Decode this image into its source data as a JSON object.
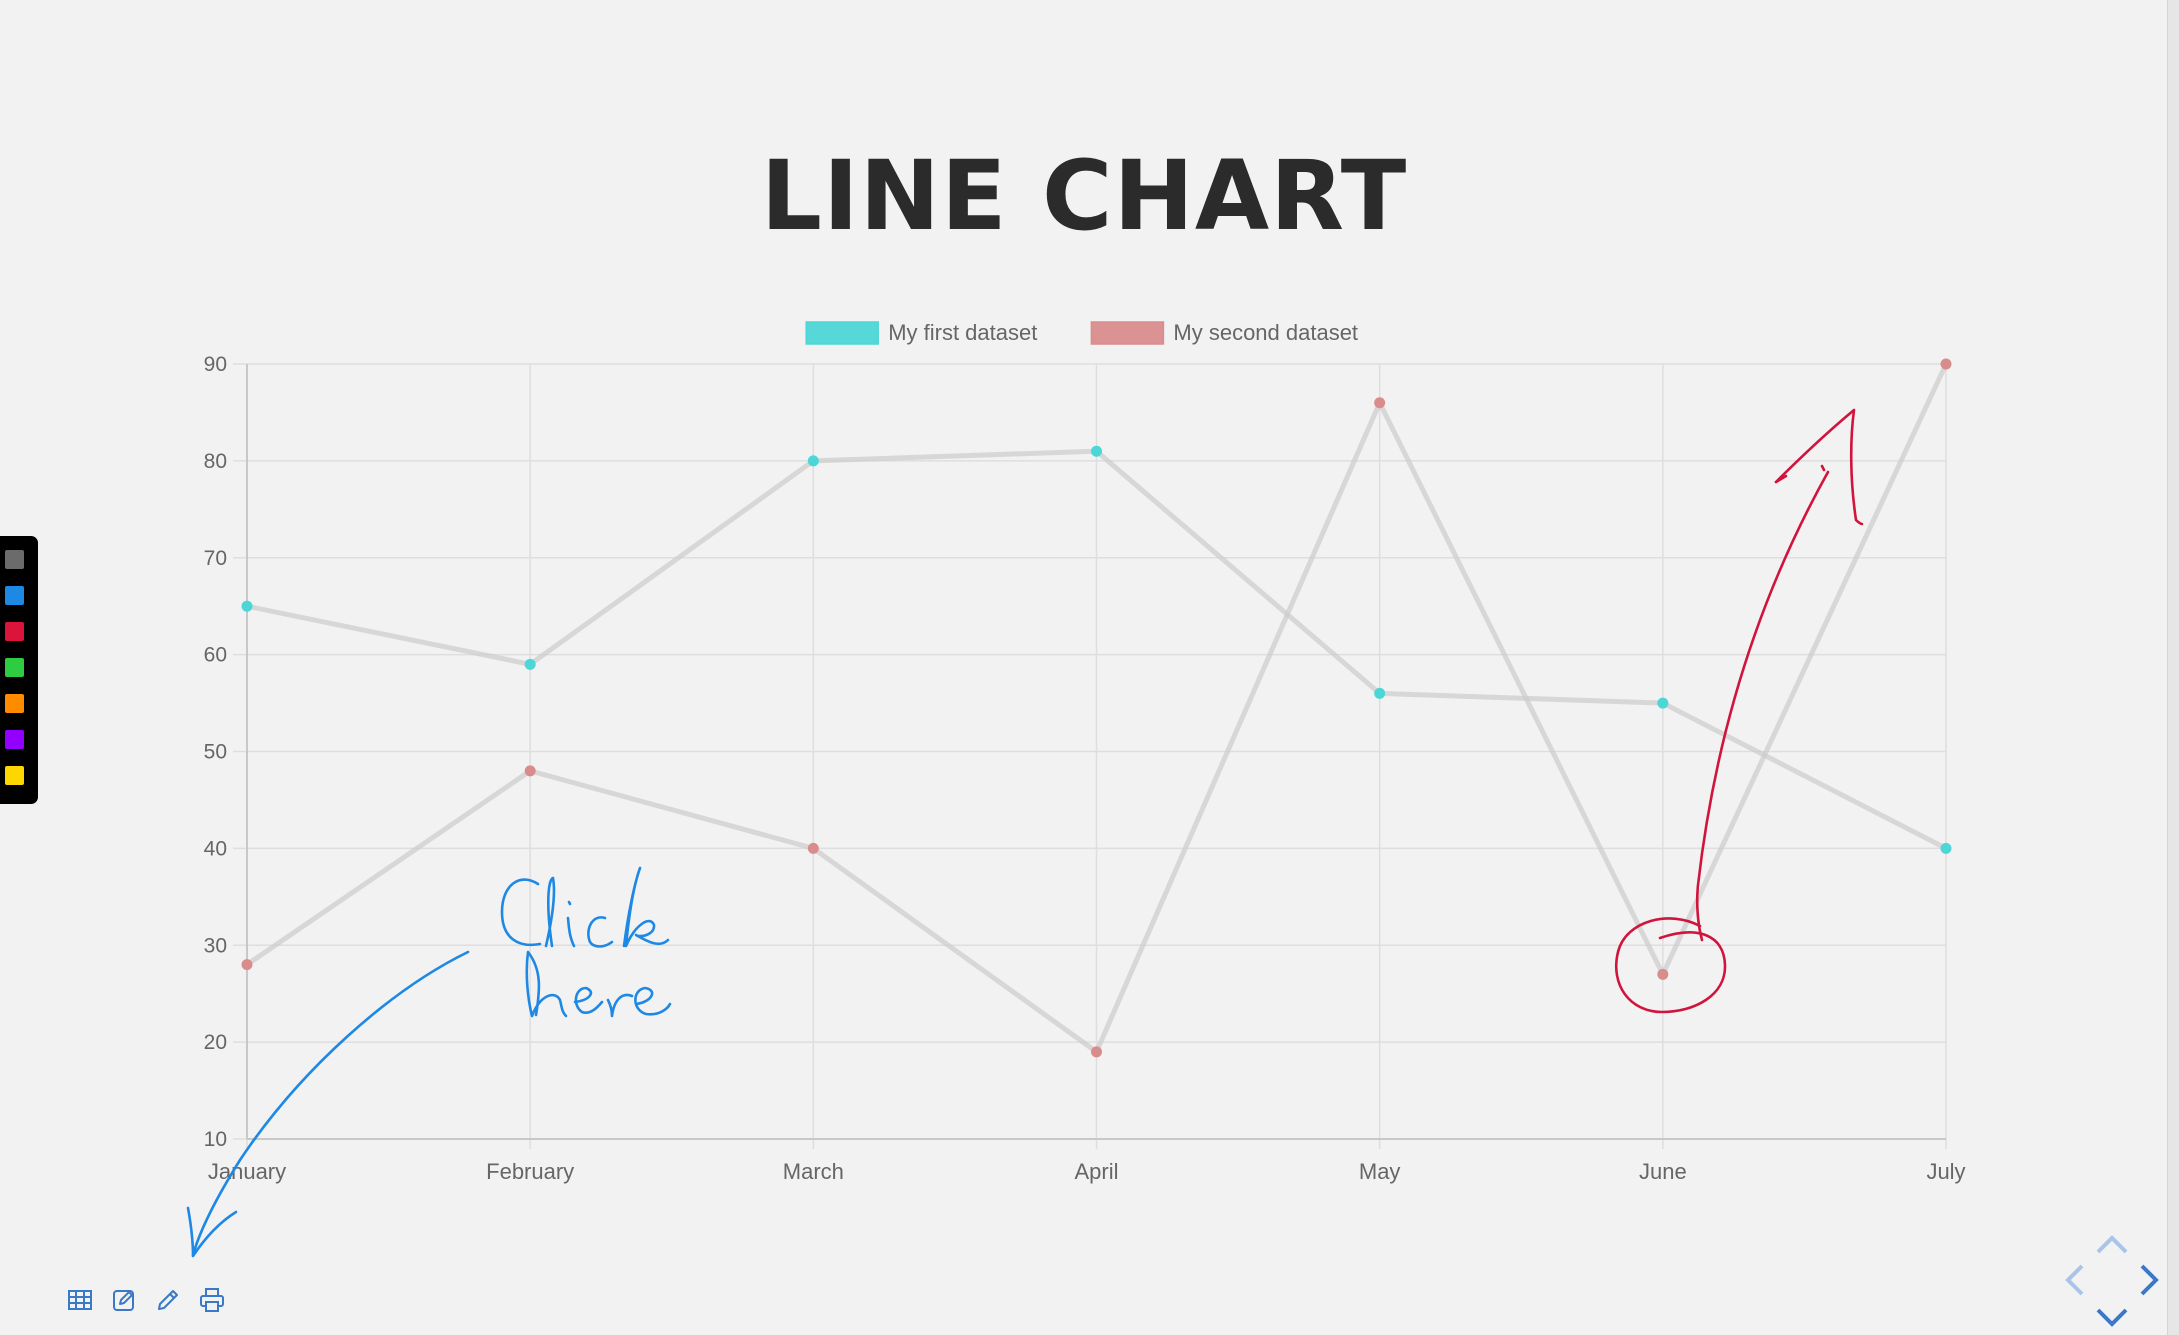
{
  "slide": {
    "title": "LINE CHART"
  },
  "chart_data": {
    "type": "line",
    "categories": [
      "January",
      "February",
      "March",
      "April",
      "May",
      "June",
      "July"
    ],
    "series": [
      {
        "name": "My first dataset",
        "values": [
          65,
          59,
          80,
          81,
          56,
          55,
          40
        ],
        "color": "#4dd6d6"
      },
      {
        "name": "My second dataset",
        "values": [
          28,
          48,
          40,
          19,
          86,
          27,
          90
        ],
        "color": "#d98c8c"
      }
    ],
    "yticks": [
      10,
      20,
      30,
      40,
      50,
      60,
      70,
      80,
      90
    ],
    "ylim": [
      10,
      90
    ],
    "grid": true,
    "legend_position": "top",
    "line_color": "#cccccc"
  },
  "annotations": {
    "click_here": [
      "Click",
      "here"
    ],
    "ink_blue": "#1e88e5",
    "ink_red": "#d0143c"
  },
  "palette": {
    "colors": [
      "#6b6b6b",
      "#1e88e5",
      "#dc143c",
      "#2ecc40",
      "#ff8c00",
      "#9400ff",
      "#ffd700"
    ]
  },
  "toolbar": {
    "icons": [
      "table-icon",
      "edit-icon",
      "pencil-icon",
      "print-icon"
    ],
    "icon_color": "#3a78c8"
  },
  "navigation": {
    "icons": [
      "nav-up-icon",
      "nav-left-icon",
      "nav-right-icon",
      "nav-down-icon"
    ],
    "color": "#3a78c8"
  }
}
